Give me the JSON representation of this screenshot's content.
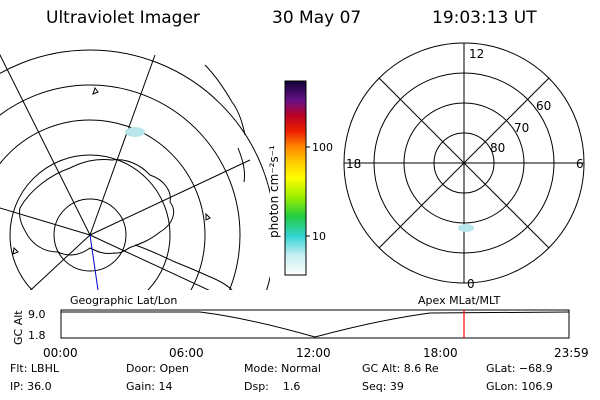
{
  "header": {
    "title": "Ultraviolet Imager",
    "date": "30 May 07",
    "time": "19:03:13 UT"
  },
  "colorbar": {
    "unit_label": "photon cm⁻²s⁻¹",
    "ticks": [
      "100",
      "10"
    ]
  },
  "polar_plot": {
    "mlt_labels": {
      "top": "12",
      "left": "18",
      "right": "6",
      "bottom": "0"
    },
    "lat_labels": [
      "60",
      "70",
      "80"
    ]
  },
  "projection": {
    "left_label": "Geographic Lat/Lon",
    "right_label": "Apex MLat/MLT"
  },
  "timeline": {
    "axis_label": "GC Alt",
    "y_ticks": [
      "9.0",
      "1.8"
    ],
    "x_ticks": [
      "00:00",
      "06:00",
      "12:00",
      "18:00",
      "23:59"
    ],
    "marker_time": "19:03",
    "marker_color": "#ff0000"
  },
  "footer": {
    "rows": [
      [
        "Flt: LBHL",
        "Door: Open",
        "Mode: Normal",
        "GC Alt: 8.6 Re",
        "GLat: −68.9"
      ],
      [
        "IP: 36.0",
        "Gain: 14",
        "Dsp:    1.6",
        "Seq: 39",
        "GLon: 106.9"
      ]
    ]
  }
}
